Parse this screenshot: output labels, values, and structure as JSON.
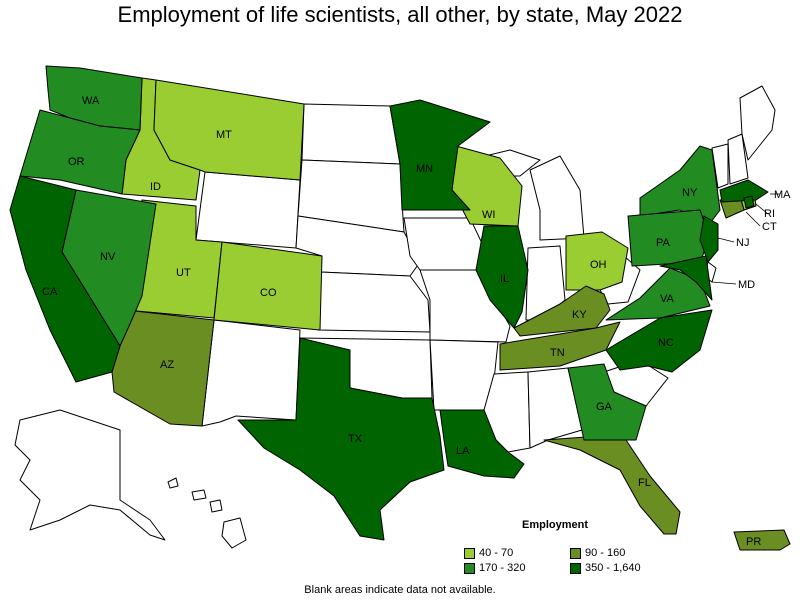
{
  "title": "Employment of life scientists, all other, by state, May 2022",
  "legend": {
    "title": "Employment",
    "items": [
      {
        "label": "40 - 70",
        "color": "#9acd32"
      },
      {
        "label": "90 - 160",
        "color": "#6b8e23"
      },
      {
        "label": "170 - 320",
        "color": "#228b22"
      },
      {
        "label": "350 - 1,640",
        "color": "#006400"
      }
    ]
  },
  "note": "Blank areas indicate data not available.",
  "colors": {
    "c1": "#9acd32",
    "c2": "#6b8e23",
    "c3": "#228b22",
    "c4": "#006400",
    "blank": "#ffffff"
  },
  "states": {
    "WA": "WA",
    "OR": "OR",
    "CA": "CA",
    "NV": "NV",
    "ID": "ID",
    "MT": "MT",
    "UT": "UT",
    "AZ": "AZ",
    "CO": "CO",
    "TX": "TX",
    "MN": "MN",
    "WI": "WI",
    "IL": "IL",
    "LA": "LA",
    "TN": "TN",
    "KY": "KY",
    "OH": "OH",
    "GA": "GA",
    "FL": "FL",
    "NC": "NC",
    "VA": "VA",
    "PA": "PA",
    "NY": "NY",
    "NJ": "NJ",
    "MD": "MD",
    "CT": "CT",
    "RI": "RI",
    "MA": "MA",
    "PR": "PR"
  }
}
